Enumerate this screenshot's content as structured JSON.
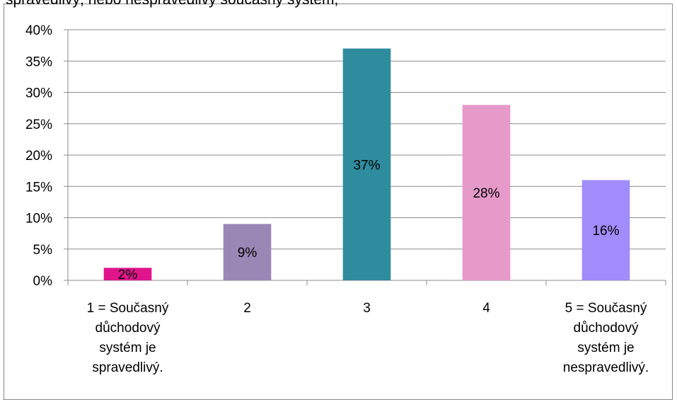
{
  "chart_data": {
    "type": "bar",
    "title": "",
    "xlabel": "",
    "ylabel": "",
    "ylim": [
      0,
      40
    ],
    "y_ticks": [
      "0%",
      "5%",
      "10%",
      "15%",
      "20%",
      "25%",
      "30%",
      "35%",
      "40%"
    ],
    "categories": [
      [
        "1 = Současný",
        "důchodový",
        "systém je",
        "spravedlivý."
      ],
      [
        "2"
      ],
      [
        "3"
      ],
      [
        "4"
      ],
      [
        "5 = Současný",
        "důchodový",
        "systém je",
        "nespravedlivý."
      ]
    ],
    "values": [
      2,
      9,
      37,
      28,
      16
    ],
    "data_labels": [
      "2%",
      "9%",
      "37%",
      "28%",
      "16%"
    ],
    "bar_colors": [
      "#e0158c",
      "#9b87b6",
      "#2e8c9e",
      "#e59ac9",
      "#a08cfa"
    ],
    "grid": true,
    "legend": "none"
  },
  "header_fragment": "spravedlivý, nebo nespravedlivý současný systém,"
}
